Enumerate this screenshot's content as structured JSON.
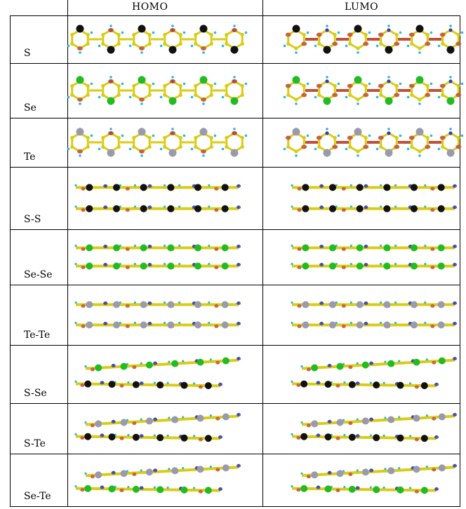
{
  "header": {
    "homo": "HOMO",
    "lumo": "LUMO"
  },
  "rows": [
    {
      "label": "S",
      "view": "top",
      "atoms": [
        "S"
      ]
    },
    {
      "label": "Se",
      "view": "top",
      "atoms": [
        "Se"
      ]
    },
    {
      "label": "Te",
      "view": "top",
      "atoms": [
        "Te"
      ]
    },
    {
      "label": "S-S",
      "view": "side",
      "atoms": [
        "S",
        "S"
      ]
    },
    {
      "label": "Se-Se",
      "view": "side",
      "atoms": [
        "Se",
        "Se"
      ]
    },
    {
      "label": "Te-Te",
      "view": "side",
      "atoms": [
        "Te",
        "Te"
      ]
    },
    {
      "label": "S-Se",
      "view": "side",
      "atoms": [
        "Se",
        "S"
      ]
    },
    {
      "label": "S-Te",
      "view": "side",
      "atoms": [
        "Te",
        "S"
      ]
    },
    {
      "label": "Se-Te",
      "view": "side",
      "atoms": [
        "Te",
        "Se"
      ]
    }
  ],
  "colors": {
    "S": "#111111",
    "Se": "#22bb22",
    "Te": "#9a9aad",
    "carbon": "#d9cc14",
    "nitrogen": "#3b3bb0",
    "hydrogen": "#2ab8d6",
    "lobe": "#c0503a"
  }
}
